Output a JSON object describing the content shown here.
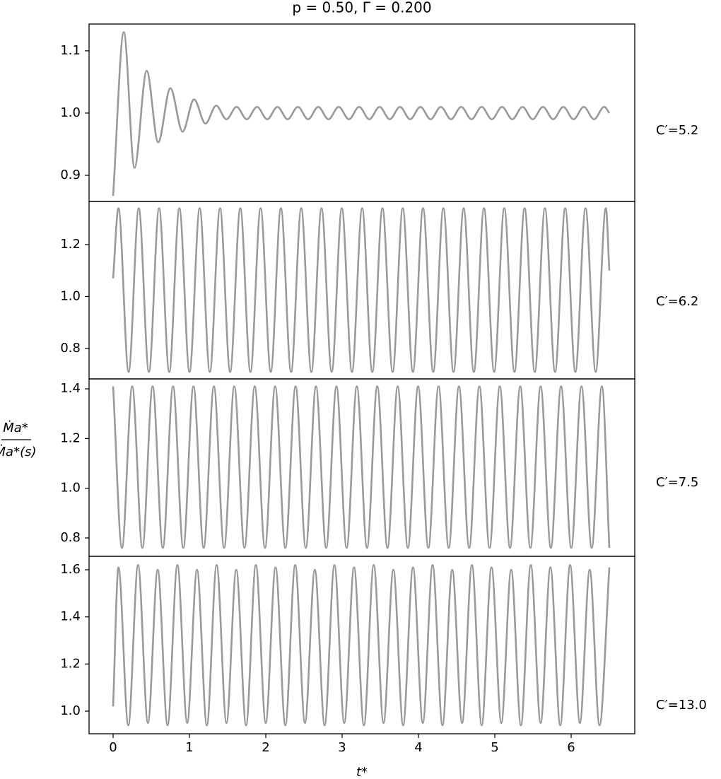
{
  "chart_data": [
    {
      "type": "line",
      "title": "p = 0.50, Γ = 0.200",
      "label": "C′=5.2",
      "color": "#999999",
      "ylabel_numerator": "Ṁa*",
      "ylabel_denominator": "Ṁa*(s)",
      "x": [
        0,
        0.14,
        0.28,
        0.44,
        0.59,
        0.75,
        0.91,
        1.06,
        1.21,
        1.35,
        1.484,
        1.6175,
        1.751,
        1.885,
        2.019,
        2.1525,
        2.286,
        2.42,
        2.554,
        2.6875,
        2.821,
        2.955,
        3.089,
        3.2225,
        3.356,
        3.49,
        3.624,
        3.7575,
        3.891,
        4.025,
        4.159,
        4.2925,
        4.426,
        4.56,
        4.694,
        4.8275,
        4.961,
        5.095,
        5.229,
        5.3625,
        5.496,
        5.63,
        5.764,
        5.8975,
        6.031,
        6.165,
        6.299,
        6.4325,
        6.5
      ],
      "values": [
        0.867,
        1.13,
        0.912,
        1.068,
        0.953,
        1.04,
        0.97,
        1.022,
        0.983,
        1.012,
        0.99,
        1.01,
        0.99,
        1.01,
        0.99,
        1.01,
        0.99,
        1.01,
        0.99,
        1.01,
        0.99,
        1.01,
        0.99,
        1.01,
        0.99,
        1.01,
        0.99,
        1.01,
        0.99,
        1.01,
        0.99,
        1.01,
        0.99,
        1.01,
        0.99,
        1.01,
        0.99,
        1.01,
        0.99,
        1.01,
        0.99,
        1.01,
        0.99,
        1.01,
        0.99,
        1.01,
        0.99,
        1.01,
        1.0
      ],
      "xlim": [
        -0.315,
        6.833
      ],
      "ylim": [
        0.858,
        1.143
      ],
      "yticks": [
        0.9,
        {
          "value": 1,
          "label": "1.0"
        },
        1.1
      ]
    },
    {
      "type": "line",
      "label": "C′=6.2",
      "color": "#999999",
      "x": [
        0,
        0.07,
        0.203,
        0.336,
        0.469,
        0.602,
        0.735,
        0.868,
        1.001,
        1.134,
        1.267,
        1.4,
        1.533,
        1.666,
        1.799,
        1.932,
        2.065,
        2.198,
        2.331,
        2.464,
        2.597,
        2.73,
        2.863,
        2.996,
        3.129,
        3.262,
        3.395,
        3.528,
        3.661,
        3.794,
        3.927,
        4.06,
        4.193,
        4.326,
        4.459,
        4.592,
        4.725,
        4.858,
        4.991,
        5.124,
        5.257,
        5.39,
        5.523,
        5.656,
        5.789,
        5.922,
        6.055,
        6.188,
        6.321,
        6.454,
        6.5
      ],
      "values": [
        1.07,
        1.34,
        0.71,
        1.34,
        0.71,
        1.34,
        0.71,
        1.34,
        0.71,
        1.34,
        0.71,
        1.34,
        0.71,
        1.34,
        0.71,
        1.34,
        0.71,
        1.34,
        0.71,
        1.34,
        0.71,
        1.34,
        0.71,
        1.34,
        0.71,
        1.34,
        0.71,
        1.34,
        0.71,
        1.34,
        0.71,
        1.34,
        0.71,
        1.34,
        0.71,
        1.34,
        0.71,
        1.34,
        0.71,
        1.34,
        0.71,
        1.34,
        0.71,
        1.34,
        0.71,
        1.34,
        0.71,
        1.34,
        0.71,
        1.34,
        1.1
      ],
      "xlim": [
        -0.315,
        6.833
      ],
      "ylim": [
        0.683,
        1.366
      ],
      "yticks": [
        0.8,
        {
          "value": 1,
          "label": "1.0"
        },
        1.2
      ]
    },
    {
      "type": "line",
      "label": "C′=7.5",
      "color": "#999999",
      "x": [
        0,
        0.116,
        0.25,
        0.384,
        0.5175,
        0.651,
        0.785,
        0.919,
        1.0525,
        1.186,
        1.32,
        1.454,
        1.5875,
        1.721,
        1.855,
        1.989,
        2.1225,
        2.256,
        2.39,
        2.524,
        2.6575,
        2.791,
        2.925,
        3.059,
        3.1925,
        3.326,
        3.46,
        3.594,
        3.7275,
        3.861,
        3.995,
        4.129,
        4.2625,
        4.396,
        4.53,
        4.664,
        4.7975,
        4.931,
        5.065,
        5.199,
        5.3325,
        5.466,
        5.6,
        5.734,
        5.8675,
        6.001,
        6.135,
        6.269,
        6.4025,
        6.5
      ],
      "values": [
        1.41,
        0.76,
        1.41,
        0.76,
        1.41,
        0.76,
        1.41,
        0.76,
        1.41,
        0.76,
        1.41,
        0.76,
        1.41,
        0.76,
        1.41,
        0.76,
        1.41,
        0.76,
        1.41,
        0.76,
        1.41,
        0.76,
        1.41,
        0.76,
        1.41,
        0.76,
        1.41,
        0.76,
        1.41,
        0.76,
        1.41,
        0.76,
        1.41,
        0.76,
        1.41,
        0.76,
        1.41,
        0.76,
        1.41,
        0.76,
        1.41,
        0.76,
        1.41,
        0.76,
        1.41,
        0.76,
        1.41,
        0.76,
        1.41,
        0.76
      ],
      "xlim": [
        -0.315,
        6.833
      ],
      "ylim": [
        0.726,
        1.44
      ],
      "yticks": [
        0.8,
        {
          "value": 1,
          "label": "1.0"
        },
        1.2,
        1.4
      ]
    },
    {
      "type": "line",
      "label": "C′=13.0",
      "color": "#999999",
      "xlabel": "t*",
      "x": [
        0,
        0.07,
        0.199,
        0.327,
        0.456,
        0.584,
        0.713,
        0.842,
        0.97,
        1.099,
        1.228,
        1.356,
        1.485,
        1.613,
        1.742,
        1.87,
        1.999,
        2.128,
        2.256,
        2.385,
        2.513,
        2.642,
        2.771,
        2.899,
        3.028,
        3.156,
        3.285,
        3.414,
        3.542,
        3.671,
        3.799,
        3.928,
        4.057,
        4.185,
        4.314,
        4.442,
        4.571,
        4.7,
        4.828,
        4.957,
        5.085,
        5.214,
        5.342,
        5.471,
        5.6,
        5.728,
        5.857,
        5.986,
        6.114,
        6.243,
        6.371,
        6.5
      ],
      "values": [
        1.02,
        1.61,
        0.94,
        1.62,
        0.95,
        1.6,
        0.94,
        1.62,
        0.95,
        1.6,
        0.94,
        1.62,
        0.95,
        1.6,
        0.94,
        1.62,
        0.95,
        1.61,
        0.94,
        1.62,
        0.95,
        1.6,
        0.94,
        1.62,
        0.95,
        1.61,
        0.94,
        1.62,
        0.95,
        1.6,
        0.94,
        1.61,
        0.95,
        1.62,
        0.94,
        1.6,
        0.95,
        1.62,
        0.94,
        1.61,
        0.95,
        1.6,
        0.94,
        1.62,
        0.95,
        1.61,
        0.94,
        1.62,
        0.95,
        1.6,
        0.94,
        1.61
      ],
      "xlim": [
        -0.315,
        6.833
      ],
      "ylim": [
        0.904,
        1.657
      ],
      "yticks": [
        {
          "value": 1,
          "label": "1.0"
        },
        1.2,
        1.4,
        1.6
      ],
      "xticks": [
        0,
        1,
        2,
        3,
        4,
        5,
        6
      ]
    }
  ]
}
